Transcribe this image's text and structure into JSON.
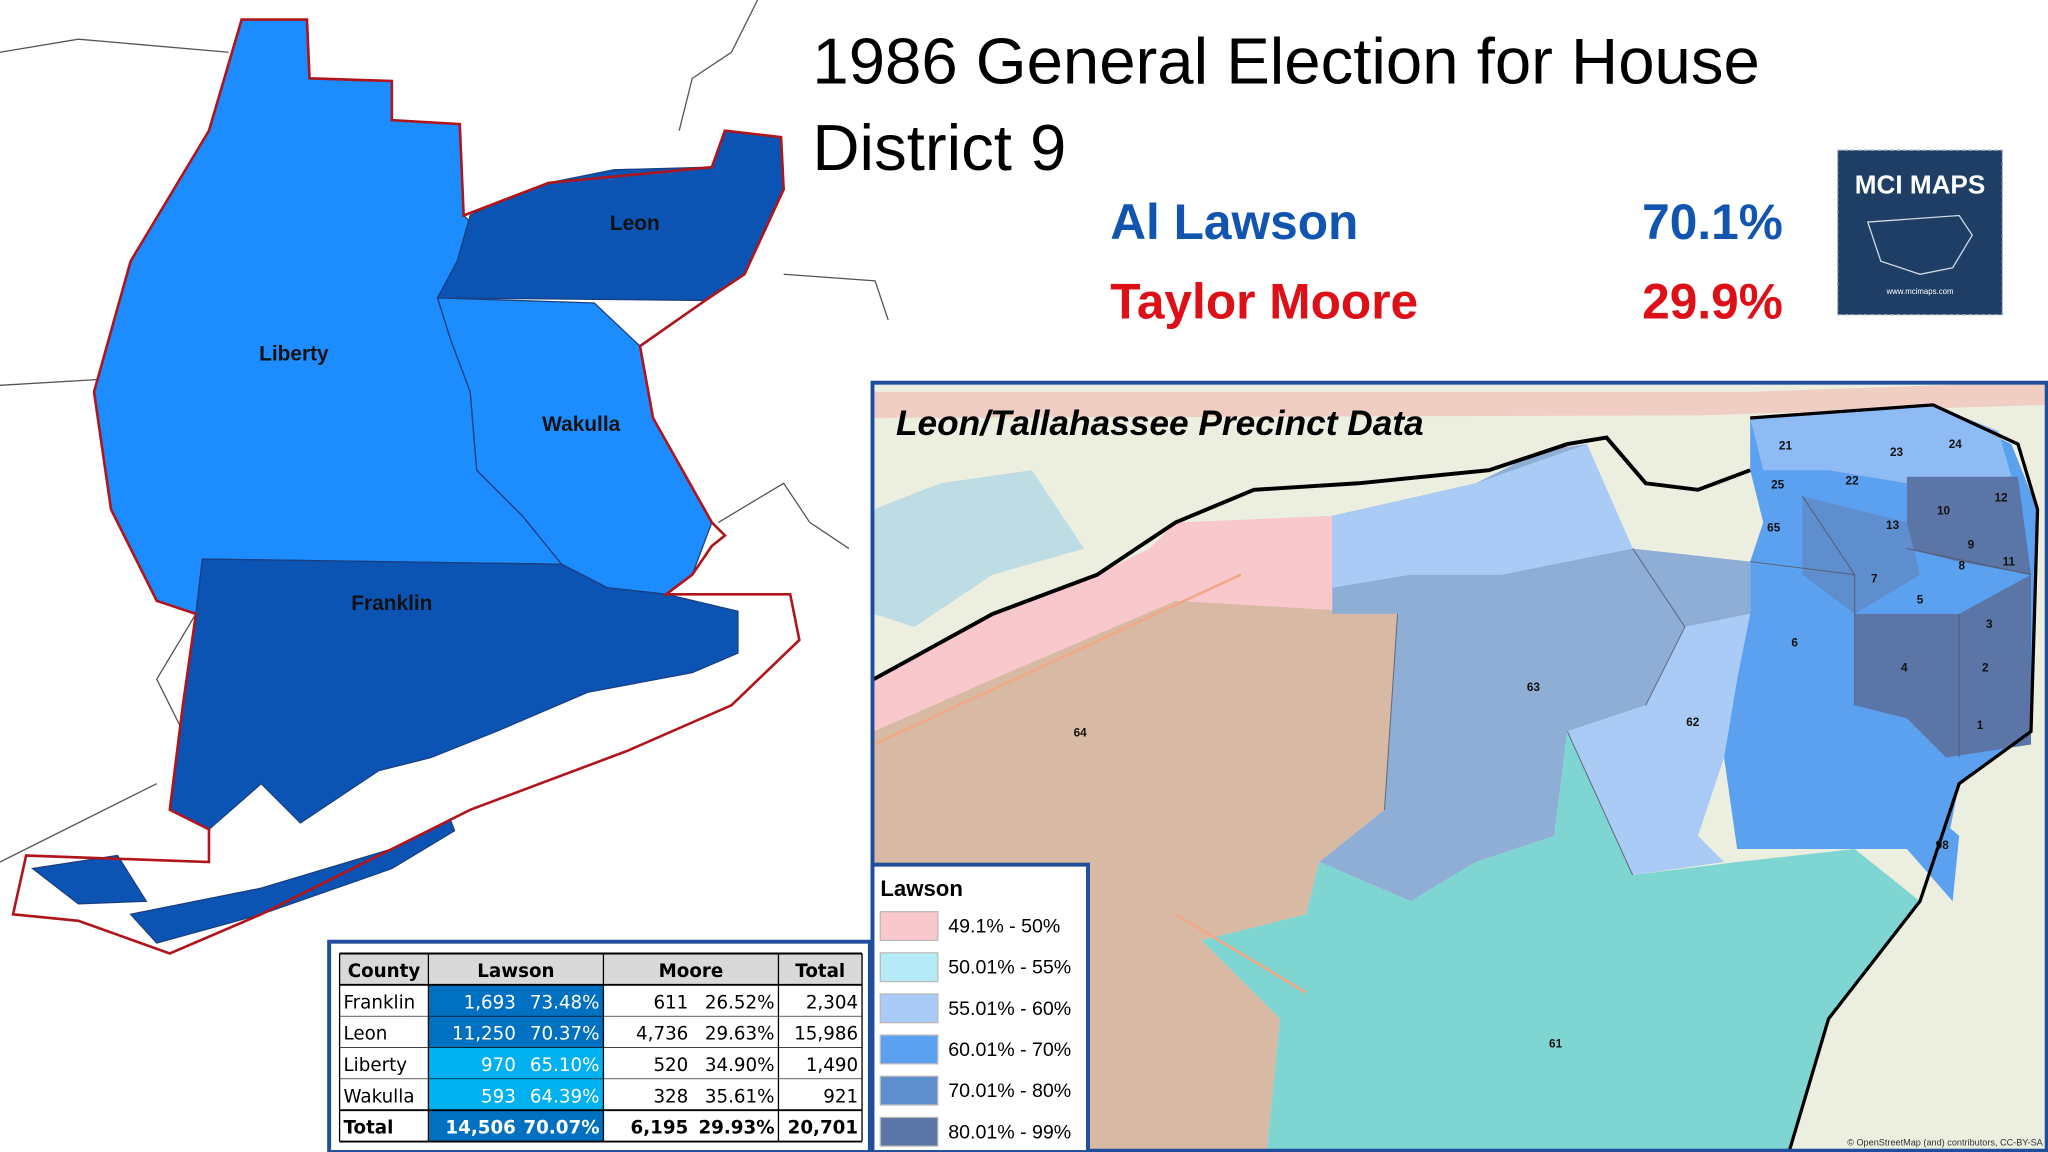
{
  "title_lines": [
    "1986 General Election for House",
    "District 9"
  ],
  "candidates": [
    {
      "name": "Al Lawson",
      "percent": "70.1%",
      "color": "#1155b0"
    },
    {
      "name": "Taylor Moore",
      "percent": "29.9%",
      "color": "#dd0f17"
    }
  ],
  "logo": {
    "title": "MCI MAPS",
    "url": "www.mcimaps.com"
  },
  "counties": [
    "Leon",
    "Liberty",
    "Wakulla",
    "Franklin"
  ],
  "table": {
    "header": [
      "County",
      "Lawson",
      "Moore",
      "Total"
    ],
    "rows": [
      [
        "Franklin",
        "1,693",
        "73.48%",
        "611",
        "26.52%",
        "2,304"
      ],
      [
        "Leon",
        "11,250",
        "70.37%",
        "4,736",
        "29.63%",
        "15,986"
      ],
      [
        "Liberty",
        "970",
        "65.10%",
        "520",
        "34.90%",
        "1,490"
      ],
      [
        "Wakulla",
        "593",
        "64.39%",
        "328",
        "35.61%",
        "921"
      ],
      [
        "Total",
        "14,506",
        "70.07%",
        "6,195",
        "29.93%",
        "20,701"
      ]
    ]
  },
  "inset": {
    "title": "Leon/Tallahassee Precinct Data",
    "precincts": [
      "21",
      "22",
      "23",
      "24",
      "25",
      "65",
      "13",
      "10",
      "12",
      "9",
      "8",
      "11",
      "7",
      "5",
      "6",
      "3",
      "4",
      "2",
      "1",
      "62",
      "63",
      "64",
      "61",
      "98"
    ],
    "attribution": "© OpenStreetMap (and) contributors, CC-BY-SA"
  },
  "legend": {
    "title": "Lawson",
    "items": [
      {
        "label": "49.1% - 50%",
        "color": "#f9c8cc"
      },
      {
        "label": "50.01% - 55%",
        "color": "#b5ebf7"
      },
      {
        "label": "55.01% - 60%",
        "color": "#a9cbf5"
      },
      {
        "label": "60.01% - 70%",
        "color": "#5ba1f0"
      },
      {
        "label": "70.01% - 80%",
        "color": "#5f8ece"
      },
      {
        "label": "80.01% - 99%",
        "color": "#5b75a6"
      }
    ]
  }
}
